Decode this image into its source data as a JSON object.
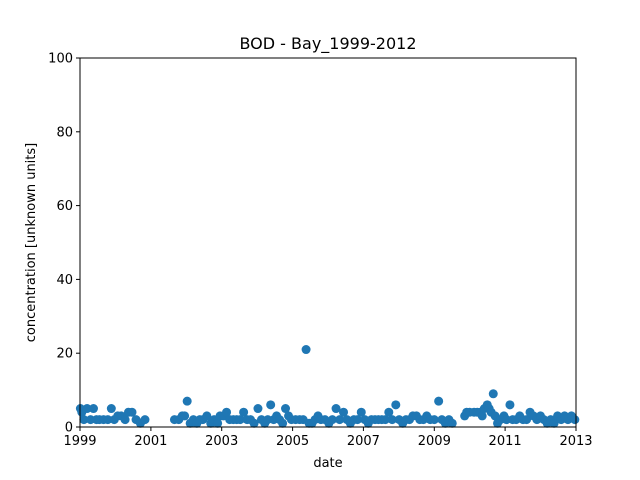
{
  "chart_data": {
    "type": "scatter",
    "title": "BOD - Bay_1999-2012",
    "xlabel": "date",
    "ylabel": "concentration [unknown units]",
    "xlim": [
      "1999-01-01",
      "2013-01-01"
    ],
    "ylim": [
      0,
      100
    ],
    "x_ticks": [
      "1999",
      "2001",
      "2003",
      "2005",
      "2007",
      "2009",
      "2011",
      "2013"
    ],
    "y_ticks": [
      "0",
      "20",
      "40",
      "60",
      "80",
      "100"
    ],
    "grid": false,
    "marker_color": "#1f77b4",
    "series": [
      {
        "points": [
          [
            "1999-01-05",
            5
          ],
          [
            "1999-01-20",
            4
          ],
          [
            "1999-02-10",
            2
          ],
          [
            "1999-03-15",
            5
          ],
          [
            "1999-04-20",
            2
          ],
          [
            "1999-05-20",
            5
          ],
          [
            "1999-06-20",
            2
          ],
          [
            "1999-07-20",
            2
          ],
          [
            "1999-09-01",
            2
          ],
          [
            "1999-10-15",
            2
          ],
          [
            "1999-11-20",
            5
          ],
          [
            "1999-12-20",
            2
          ],
          [
            "2000-01-25",
            3
          ],
          [
            "2000-03-01",
            3
          ],
          [
            "2000-04-10",
            2
          ],
          [
            "2000-05-15",
            4
          ],
          [
            "2000-06-20",
            4
          ],
          [
            "2000-08-01",
            2
          ],
          [
            "2000-09-15",
            1
          ],
          [
            "2000-11-01",
            2
          ],
          [
            "2001-09-01",
            2
          ],
          [
            "2001-10-15",
            2
          ],
          [
            "2001-11-20",
            3
          ],
          [
            "2001-12-15",
            3
          ],
          [
            "2002-01-10",
            7
          ],
          [
            "2002-02-10",
            1
          ],
          [
            "2002-03-15",
            2
          ],
          [
            "2002-04-20",
            1
          ],
          [
            "2002-05-20",
            2
          ],
          [
            "2002-06-20",
            2
          ],
          [
            "2002-08-01",
            3
          ],
          [
            "2002-09-10",
            1
          ],
          [
            "2002-10-15",
            2
          ],
          [
            "2002-11-20",
            1
          ],
          [
            "2002-12-15",
            3
          ],
          [
            "2003-01-20",
            3
          ],
          [
            "2003-02-20",
            4
          ],
          [
            "2003-03-25",
            2
          ],
          [
            "2003-05-01",
            2
          ],
          [
            "2003-06-05",
            2
          ],
          [
            "2003-07-10",
            2
          ],
          [
            "2003-08-15",
            4
          ],
          [
            "2003-09-20",
            2
          ],
          [
            "2003-10-25",
            2
          ],
          [
            "2003-12-01",
            1
          ],
          [
            "2004-01-10",
            5
          ],
          [
            "2004-02-15",
            2
          ],
          [
            "2004-03-20",
            1
          ],
          [
            "2004-04-20",
            2
          ],
          [
            "2004-05-20",
            6
          ],
          [
            "2004-06-20",
            2
          ],
          [
            "2004-07-20",
            3
          ],
          [
            "2004-08-20",
            2
          ],
          [
            "2004-09-20",
            1
          ],
          [
            "2004-10-20",
            5
          ],
          [
            "2004-11-20",
            3
          ],
          [
            "2004-12-20",
            2
          ],
          [
            "2005-02-01",
            2
          ],
          [
            "2005-03-15",
            2
          ],
          [
            "2005-04-20",
            2
          ],
          [
            "2005-05-20",
            21
          ],
          [
            "2005-06-20",
            1
          ],
          [
            "2005-07-20",
            1
          ],
          [
            "2005-08-20",
            2
          ],
          [
            "2005-09-20",
            3
          ],
          [
            "2005-10-20",
            2
          ],
          [
            "2005-12-01",
            2
          ],
          [
            "2006-01-10",
            1
          ],
          [
            "2006-02-15",
            2
          ],
          [
            "2006-03-25",
            5
          ],
          [
            "2006-05-01",
            2
          ],
          [
            "2006-06-10",
            4
          ],
          [
            "2006-07-15",
            2
          ],
          [
            "2006-08-20",
            1
          ],
          [
            "2006-09-25",
            2
          ],
          [
            "2006-11-01",
            2
          ],
          [
            "2006-12-10",
            4
          ],
          [
            "2007-01-15",
            2
          ],
          [
            "2007-02-20",
            1
          ],
          [
            "2007-03-25",
            2
          ],
          [
            "2007-05-01",
            2
          ],
          [
            "2007-06-05",
            2
          ],
          [
            "2007-07-10",
            2
          ],
          [
            "2007-08-15",
            2
          ],
          [
            "2007-09-20",
            4
          ],
          [
            "2007-10-25",
            2
          ],
          [
            "2007-12-01",
            6
          ],
          [
            "2008-01-05",
            2
          ],
          [
            "2008-02-10",
            1
          ],
          [
            "2008-03-15",
            2
          ],
          [
            "2008-04-20",
            2
          ],
          [
            "2008-05-25",
            3
          ],
          [
            "2008-07-01",
            3
          ],
          [
            "2008-08-05",
            2
          ],
          [
            "2008-09-10",
            2
          ],
          [
            "2008-10-15",
            3
          ],
          [
            "2008-11-20",
            2
          ],
          [
            "2009-01-01",
            2
          ],
          [
            "2009-02-15",
            7
          ],
          [
            "2009-03-20",
            2
          ],
          [
            "2009-04-25",
            1
          ],
          [
            "2009-06-01",
            2
          ],
          [
            "2009-07-05",
            1
          ],
          [
            "2009-11-10",
            3
          ],
          [
            "2009-12-01",
            4
          ],
          [
            "2010-01-01",
            4
          ],
          [
            "2010-02-15",
            4
          ],
          [
            "2010-03-20",
            4
          ],
          [
            "2010-04-20",
            4
          ],
          [
            "2010-05-10",
            3
          ],
          [
            "2010-06-01",
            5
          ],
          [
            "2010-07-01",
            6
          ],
          [
            "2010-07-20",
            5
          ],
          [
            "2010-08-10",
            4
          ],
          [
            "2010-09-01",
            9
          ],
          [
            "2010-09-20",
            3
          ],
          [
            "2010-10-15",
            1
          ],
          [
            "2010-11-15",
            2
          ],
          [
            "2010-12-20",
            3
          ],
          [
            "2011-01-15",
            2
          ],
          [
            "2011-02-20",
            6
          ],
          [
            "2011-03-20",
            2
          ],
          [
            "2011-04-25",
            2
          ],
          [
            "2011-06-01",
            3
          ],
          [
            "2011-07-05",
            2
          ],
          [
            "2011-08-10",
            2
          ],
          [
            "2011-09-15",
            4
          ],
          [
            "2011-10-20",
            3
          ],
          [
            "2011-11-25",
            2
          ],
          [
            "2012-01-01",
            3
          ],
          [
            "2012-02-05",
            2
          ],
          [
            "2012-03-10",
            1
          ],
          [
            "2012-04-15",
            2
          ],
          [
            "2012-05-20",
            1
          ],
          [
            "2012-06-25",
            3
          ],
          [
            "2012-08-01",
            2
          ],
          [
            "2012-09-05",
            3
          ],
          [
            "2012-10-10",
            2
          ],
          [
            "2012-11-15",
            3
          ],
          [
            "2012-12-20",
            2
          ]
        ]
      }
    ]
  }
}
